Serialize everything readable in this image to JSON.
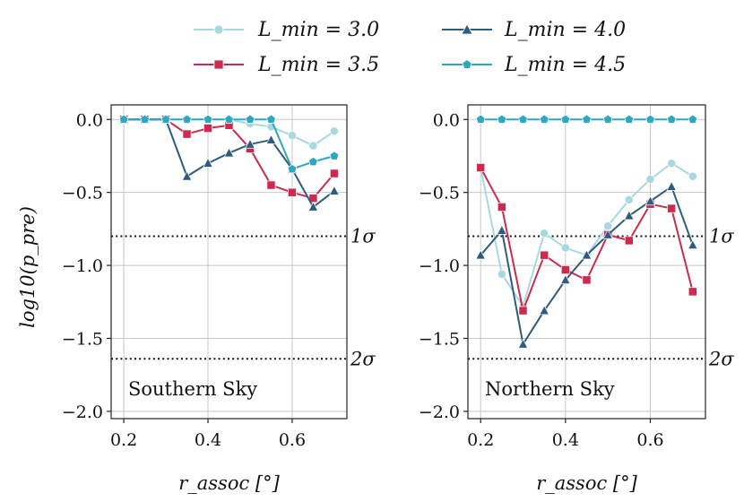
{
  "chart_data": {
    "type": "line",
    "ylabel": "log10(p_pre)",
    "xlabel": "r_assoc [°]",
    "legend_position": "top",
    "legend": [
      {
        "key": "l30",
        "label": "L_min = 3.0",
        "color": "#a8d8e0",
        "marker": "circle"
      },
      {
        "key": "l40",
        "label": "L_min = 4.0",
        "color": "#2e5c7e",
        "marker": "triangle"
      },
      {
        "key": "l35",
        "label": "L_min = 3.5",
        "color": "#cc2a4e",
        "marker": "square"
      },
      {
        "key": "l45",
        "label": "L_min = 4.5",
        "color": "#2ea7c0",
        "marker": "pentagon"
      }
    ],
    "ylim": [
      -2.05,
      0.1
    ],
    "yticks": [
      0.0,
      -0.5,
      -1.0,
      -1.5,
      -2.0
    ],
    "ytick_labels": [
      "0.0",
      "−0.5",
      "−1.0",
      "−1.5",
      "−2.0"
    ],
    "xlim": [
      0.17,
      0.73
    ],
    "xticks": [
      0.2,
      0.4,
      0.6
    ],
    "xtick_labels": [
      "0.2",
      "0.4",
      "0.6"
    ],
    "sigma_lines": [
      {
        "label": "1σ",
        "value": -0.8
      },
      {
        "label": "2σ",
        "value": -1.64
      }
    ],
    "x": [
      0.2,
      0.25,
      0.3,
      0.35,
      0.4,
      0.45,
      0.5,
      0.55,
      0.6,
      0.65,
      0.7
    ],
    "panels": [
      {
        "title": "Southern Sky",
        "series": [
          {
            "key": "l30",
            "values": [
              0.0,
              0.0,
              0.0,
              0.0,
              0.0,
              0.0,
              -0.03,
              -0.05,
              -0.11,
              -0.18,
              -0.08
            ]
          },
          {
            "key": "l35",
            "values": [
              0.0,
              0.0,
              0.0,
              -0.1,
              -0.06,
              -0.04,
              -0.2,
              -0.45,
              -0.5,
              -0.54,
              -0.37
            ]
          },
          {
            "key": "l40",
            "values": [
              0.0,
              0.0,
              0.0,
              -0.39,
              -0.3,
              -0.23,
              -0.17,
              -0.14,
              -0.34,
              -0.6,
              -0.49
            ]
          },
          {
            "key": "l45",
            "values": [
              0.0,
              0.0,
              0.0,
              0.0,
              0.0,
              0.0,
              0.0,
              0.0,
              -0.34,
              -0.29,
              -0.25
            ]
          }
        ]
      },
      {
        "title": "Northern Sky",
        "series": [
          {
            "key": "l30",
            "values": [
              -0.33,
              -1.06,
              -1.28,
              -0.78,
              -0.88,
              -0.93,
              -0.73,
              -0.55,
              -0.41,
              -0.3,
              -0.39
            ]
          },
          {
            "key": "l35",
            "values": [
              -0.33,
              -0.6,
              -1.31,
              -0.93,
              -1.03,
              -1.1,
              -0.79,
              -0.83,
              -0.58,
              -0.61,
              -1.18
            ]
          },
          {
            "key": "l40",
            "values": [
              -0.93,
              -0.76,
              -1.54,
              -1.31,
              -1.1,
              -0.93,
              -0.79,
              -0.66,
              -0.56,
              -0.46,
              -0.86
            ]
          },
          {
            "key": "l45",
            "values": [
              0.0,
              0.0,
              0.0,
              0.0,
              0.0,
              0.0,
              0.0,
              0.0,
              0.0,
              0.0,
              0.0
            ]
          }
        ]
      }
    ]
  }
}
